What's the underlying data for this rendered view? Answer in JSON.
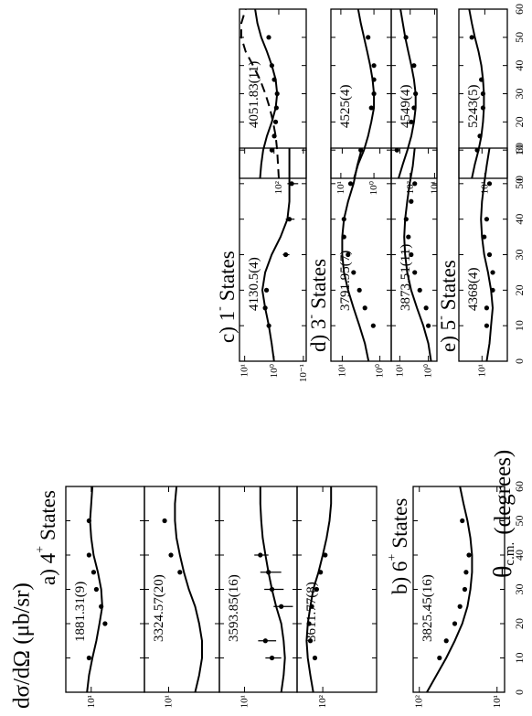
{
  "chart_data": {
    "type": "panels",
    "y_label": "dσ/dΩ (μb/sr)",
    "x_label": "θ",
    "x_label_sub": "c.m.",
    "x_label_unit": "(degrees)",
    "xlim": [
      0,
      60
    ],
    "xticks": [
      0,
      10,
      20,
      30,
      40,
      50,
      60
    ],
    "log_scale": true,
    "curve_x": [
      0,
      5,
      10,
      15,
      20,
      25,
      30,
      35,
      40,
      45,
      50,
      55,
      60
    ],
    "groups": [
      {
        "title": "a) 4",
        "sup": "+",
        "rest": "States"
      },
      {
        "title": "b) 6",
        "sup": "+",
        "rest": "States"
      },
      {
        "title": "c) 1",
        "sup": "-",
        "rest": "States"
      },
      {
        "title": "d) 3",
        "sup": "-",
        "rest": "States"
      },
      {
        "title": "e) 5",
        "sup": "-",
        "rest": "States"
      }
    ],
    "panels": [
      {
        "label": "1881.31(9)",
        "ylim": [
          1,
          30
        ],
        "yticks": [
          {
            "value": 10,
            "label": "10¹"
          }
        ],
        "curve": [
          12,
          11,
          9.5,
          8,
          7,
          6.2,
          6.5,
          7.5,
          9,
          10,
          10.5,
          10,
          9.5
        ],
        "points_x": [
          10,
          20,
          25,
          30,
          35,
          40,
          50
        ],
        "points_y": [
          11,
          5.5,
          6.5,
          8,
          9,
          11,
          11
        ]
      },
      {
        "label": "3324.57(20)",
        "ylim": [
          1,
          30
        ],
        "yticks": [
          {
            "value": 10,
            "label": "10¹"
          }
        ],
        "curve": [
          3,
          2.5,
          2.2,
          2.2,
          2.5,
          3,
          4,
          5,
          6,
          7,
          7.5,
          7.5,
          7
        ],
        "points_x": [
          35,
          40,
          50
        ],
        "points_y": [
          6,
          9,
          12
        ]
      },
      {
        "label": "3593.85(16)",
        "ylim": [
          1,
          30
        ],
        "yticks": [
          {
            "value": 10,
            "label": "10¹"
          }
        ],
        "curve": [
          2,
          1.8,
          1.7,
          1.8,
          2,
          2.5,
          3,
          3.5,
          4,
          4.5,
          4.8,
          5,
          5
        ],
        "points_x": [
          10,
          15,
          25,
          30,
          35,
          40
        ],
        "points_y": [
          3,
          4,
          2,
          3,
          3.5,
          5
        ],
        "errors": [
          1,
          1.5,
          0.8,
          1.2,
          1.5,
          1.5
        ]
      },
      {
        "label": "3611.77(8)",
        "ylim": [
          10,
          300
        ],
        "yticks": [
          {
            "value": 100,
            "label": "10²"
          }
        ],
        "curve": [
          150,
          170,
          190,
          200,
          190,
          170,
          150,
          120,
          100,
          85,
          75,
          70,
          70
        ],
        "points_x": [
          10,
          15,
          20,
          25,
          30,
          35,
          40
        ],
        "points_y": [
          140,
          170,
          180,
          160,
          130,
          110,
          90
        ]
      },
      {
        "label": "3825.45(16)",
        "ylim": [
          8,
          120
        ],
        "yticks": [
          {
            "value": 100,
            "label": "10²"
          },
          {
            "value": 10,
            "label": "10¹"
          }
        ],
        "curve": [
          80,
          60,
          45,
          35,
          28,
          24,
          22,
          21,
          21,
          22,
          24,
          27,
          30
        ],
        "points_x": [
          10,
          15,
          20,
          25,
          30,
          35,
          40,
          50
        ],
        "points_y": [
          55,
          45,
          35,
          30,
          26,
          25,
          23,
          28
        ]
      },
      {
        "label": "4130.5(4)",
        "ylim": [
          0.08,
          15
        ],
        "yticks": [
          {
            "value": 10,
            "label": "10¹"
          },
          {
            "value": 1,
            "label": "10⁰"
          },
          {
            "value": 0.1,
            "label": "10⁻¹"
          }
        ],
        "curve": [
          1,
          1.2,
          1.5,
          2,
          2.5,
          2,
          1.2,
          0.6,
          0.35,
          0.3,
          0.3,
          0.3,
          0.3
        ],
        "points_x": [
          10,
          15,
          20,
          30,
          40,
          50
        ],
        "points_y": [
          1.5,
          2,
          1.8,
          0.4,
          0.3,
          0.25
        ],
        "errors": [
          0.2,
          0.2,
          0.2,
          0.1,
          0.1,
          0.1
        ]
      },
      {
        "label": "3791.95(7)",
        "ylim": [
          0.5,
          20
        ],
        "yticks": [
          {
            "value": 10,
            "label": "10¹"
          },
          {
            "value": 1,
            "label": "10⁰"
          }
        ],
        "curve": [
          2,
          2.5,
          3.5,
          5,
          7,
          9,
          10,
          10,
          9,
          7,
          5,
          4,
          3
        ],
        "points_x": [
          10,
          15,
          20,
          25,
          30,
          35,
          40,
          50
        ],
        "points_y": [
          1.5,
          2.5,
          3.5,
          5,
          7,
          9,
          9,
          6
        ]
      },
      {
        "label": "3873.51(11)",
        "ylim": [
          0.5,
          20
        ],
        "yticks": [
          {
            "value": 10,
            "label": "10¹"
          },
          {
            "value": 1,
            "label": "10⁰"
          }
        ],
        "curve": [
          0.8,
          1,
          1.5,
          2.5,
          4,
          5.5,
          6.5,
          7,
          6.5,
          5.5,
          4.5,
          3.5,
          3
        ],
        "points_x": [
          10,
          15,
          20,
          25,
          30,
          35,
          40,
          45,
          50
        ],
        "points_y": [
          1,
          1.2,
          2,
          3,
          4,
          5,
          6,
          4,
          3
        ]
      },
      {
        "label": "4368(4)",
        "ylim": [
          3,
          30
        ],
        "yticks": [
          {
            "value": 10,
            "label": "10¹"
          }
        ],
        "curve": [
          8,
          7,
          6.5,
          6,
          6.5,
          7.5,
          9,
          10,
          10.5,
          10,
          9,
          8,
          7
        ],
        "points_x": [
          10,
          15,
          20,
          25,
          30,
          35,
          40,
          50
        ],
        "points_y": [
          8,
          8,
          6,
          6,
          7,
          9,
          8,
          7
        ]
      },
      {
        "label": "4051.83(11)",
        "ylim": [
          20,
          1000
        ],
        "yticks": [
          {
            "value": 100,
            "label": "10²"
          }
        ],
        "curve": [
          300,
          280,
          250,
          200,
          150,
          120,
          110,
          120,
          150,
          200,
          280,
          350,
          400
        ],
        "dashed": [
          100,
          105,
          110,
          120,
          140,
          170,
          220,
          300,
          450,
          700,
          900,
          900,
          700
        ],
        "points_x": [
          10,
          15,
          20,
          25,
          30,
          35,
          40,
          50
        ],
        "points_y": [
          150,
          130,
          120,
          115,
          110,
          130,
          150,
          180
        ]
      },
      {
        "label": "4525(4)",
        "ylim": [
          0.3,
          20
        ],
        "yticks": [
          {
            "value": 10,
            "label": "10¹"
          },
          {
            "value": 1,
            "label": "10⁰"
          }
        ],
        "curve": [
          4,
          3,
          2,
          1.5,
          1.2,
          1,
          1,
          1.1,
          1.3,
          1.6,
          2,
          2.5,
          3
        ],
        "points_x": [
          10,
          25,
          30,
          35,
          40,
          50
        ],
        "points_y": [
          2.5,
          1.2,
          1,
          1,
          1,
          1.5
        ]
      },
      {
        "label": "4549(4)",
        "ylim": [
          8,
          600
        ],
        "yticks": [
          {
            "value": 100,
            "label": "10²"
          },
          {
            "value": 10,
            "label": "10¹"
          }
        ],
        "curve": [
          300,
          200,
          130,
          90,
          70,
          60,
          60,
          70,
          90,
          120,
          160,
          200,
          250
        ],
        "points_x": [
          10,
          20,
          25,
          30,
          40,
          50
        ],
        "points_y": [
          350,
          90,
          70,
          60,
          70,
          150
        ]
      },
      {
        "label": "5243(5)",
        "ylim": [
          3,
          40
        ],
        "yticks": [
          {
            "value": 10,
            "label": "10¹"
          }
        ],
        "curve": [
          20,
          17,
          14,
          12,
          11,
          10.5,
          10.5,
          11,
          12,
          14,
          17,
          20,
          23
        ],
        "points_x": [
          10,
          15,
          25,
          30,
          35,
          50
        ],
        "points_y": [
          15,
          13,
          11,
          11,
          12,
          20
        ]
      }
    ]
  }
}
